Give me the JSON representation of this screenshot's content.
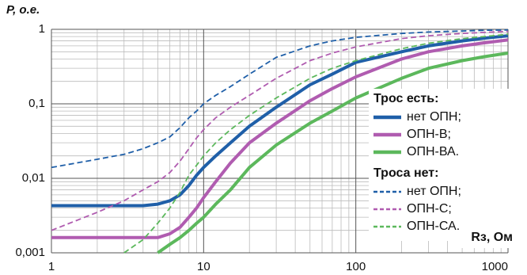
{
  "chart_data": {
    "type": "line",
    "y_label": "P, о.е.",
    "x_label": "Rз, Ом",
    "log_x": true,
    "log_y": true,
    "grid": true,
    "xlim": [
      1,
      1000
    ],
    "xticks": [
      1,
      10,
      100,
      1000
    ],
    "ylim": [
      0.001,
      1
    ],
    "yticks": [
      {
        "value": 0.001,
        "label": "0,001"
      },
      {
        "value": 0.01,
        "label": "0,01"
      },
      {
        "value": 0.1,
        "label": "0,1"
      },
      1
    ],
    "legend_position": "right",
    "legend_titles": [
      "Трос есть:",
      "Троса нет:"
    ],
    "x": [
      1,
      2,
      3,
      4,
      5,
      6,
      7,
      8,
      9,
      10,
      12,
      15,
      20,
      30,
      50,
      70,
      100,
      200,
      300,
      500,
      700,
      1000
    ],
    "series": [
      {
        "name": "нет ОПН;",
        "color": "#1f5fa8",
        "style": "solid",
        "values": [
          0.0043,
          0.0043,
          0.0043,
          0.0043,
          0.0045,
          0.005,
          0.006,
          0.008,
          0.011,
          0.014,
          0.02,
          0.03,
          0.05,
          0.09,
          0.18,
          0.25,
          0.36,
          0.5,
          0.6,
          0.7,
          0.76,
          0.82
        ]
      },
      {
        "name": "ОПН-В;",
        "color": "#b05cb0",
        "style": "solid",
        "values": [
          0.0016,
          0.0016,
          0.0016,
          0.0016,
          0.0016,
          0.0018,
          0.0022,
          0.003,
          0.004,
          0.0055,
          0.009,
          0.016,
          0.03,
          0.055,
          0.11,
          0.16,
          0.23,
          0.4,
          0.5,
          0.6,
          0.66,
          0.72
        ]
      },
      {
        "name": "ОПН-ВА.",
        "color": "#5cb85c",
        "style": "solid",
        "values": [
          null,
          null,
          null,
          null,
          0.001,
          0.0013,
          0.0016,
          0.002,
          0.0025,
          0.003,
          0.0045,
          0.007,
          0.014,
          0.028,
          0.055,
          0.08,
          0.12,
          0.22,
          0.3,
          0.38,
          0.43,
          0.48
        ]
      },
      {
        "name": "нет ОПН;",
        "color": "#1f5fa8",
        "style": "dashed",
        "values": [
          0.014,
          0.018,
          0.021,
          0.025,
          0.03,
          0.036,
          0.048,
          0.065,
          0.08,
          0.1,
          0.13,
          0.17,
          0.25,
          0.42,
          0.6,
          0.7,
          0.78,
          0.88,
          0.92,
          0.95,
          0.97,
          0.98
        ]
      },
      {
        "name": "ОПН-С;",
        "color": "#b05cb0",
        "style": "dashed",
        "values": [
          0.002,
          0.0035,
          0.005,
          0.007,
          0.009,
          0.012,
          0.017,
          0.025,
          0.035,
          0.045,
          0.065,
          0.09,
          0.13,
          0.22,
          0.38,
          0.48,
          0.58,
          0.75,
          0.82,
          0.88,
          0.91,
          0.94
        ]
      },
      {
        "name": "ОПН-СА.",
        "color": "#5cb85c",
        "style": "dashed",
        "values": [
          null,
          null,
          0.001,
          0.0015,
          0.0025,
          0.004,
          0.0065,
          0.011,
          0.015,
          0.02,
          0.03,
          0.045,
          0.07,
          0.12,
          0.22,
          0.3,
          0.38,
          0.55,
          0.65,
          0.75,
          0.8,
          0.86
        ]
      }
    ]
  }
}
